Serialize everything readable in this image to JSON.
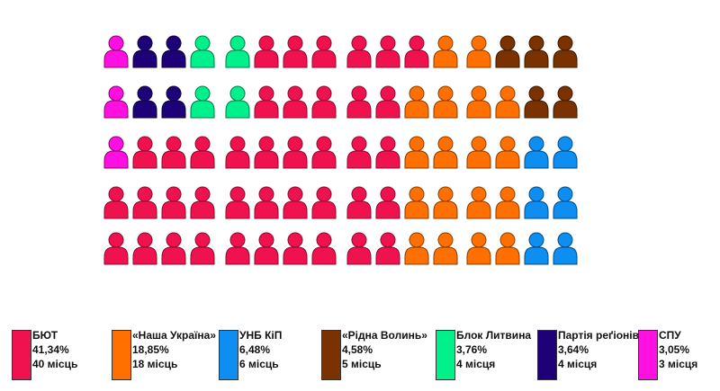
{
  "parties": [
    {
      "key": "byut",
      "name": "БЮТ",
      "percent": "41,34%",
      "seats_label": "40 місць",
      "seats": 40,
      "color": "#F0124F",
      "stroke": "#8a0a2d"
    },
    {
      "key": "nu",
      "name": "«Наша Україна»",
      "percent": "18,85%",
      "seats_label": "18 місць",
      "seats": 18,
      "color": "#FF7000",
      "stroke": "#8a3c00"
    },
    {
      "key": "unb",
      "name": "УНБ КіП",
      "percent": "6,48%",
      "seats_label": "6 місць",
      "seats": 6,
      "color": "#0D8EF0",
      "stroke": "#064a80"
    },
    {
      "key": "rv",
      "name": "«Рідна Волинь»",
      "percent": "4,58%",
      "seats_label": "5 місць",
      "seats": 5,
      "color": "#7A3300",
      "stroke": "#3a1800"
    },
    {
      "key": "lytvyn",
      "name": "Блок Литвина",
      "percent": "3,76%",
      "seats_label": "4 місця",
      "seats": 4,
      "color": "#00F08C",
      "stroke": "#007a46"
    },
    {
      "key": "pr",
      "name": "Партія реґіонів",
      "percent": "3,64%",
      "seats_label": "4 місця",
      "seats": 4,
      "color": "#1E0078",
      "stroke": "#0c0035"
    },
    {
      "key": "spu",
      "name": "СПУ",
      "percent": "3,05%",
      "seats_label": "3 місця",
      "seats": 3,
      "color": "#FF10E0",
      "stroke": "#850070"
    }
  ],
  "seat_rows": [
    [
      "spu",
      "pr",
      "pr",
      "lytvyn",
      "lytvyn",
      "byut",
      "byut",
      "byut",
      "byut",
      "byut",
      "byut",
      "nu",
      "nu",
      "rv",
      "rv",
      "rv"
    ],
    [
      "spu",
      "pr",
      "pr",
      "lytvyn",
      "lytvyn",
      "byut",
      "byut",
      "byut",
      "byut",
      "byut",
      "nu",
      "nu",
      "nu",
      "nu",
      "rv",
      "rv"
    ],
    [
      "spu",
      "byut",
      "byut",
      "byut",
      "byut",
      "byut",
      "byut",
      "byut",
      "byut",
      "byut",
      "nu",
      "nu",
      "nu",
      "nu",
      "unb",
      "unb"
    ],
    [
      "byut",
      "byut",
      "byut",
      "byut",
      "byut",
      "byut",
      "byut",
      "byut",
      "byut",
      "byut",
      "nu",
      "nu",
      "nu",
      "nu",
      "unb",
      "unb"
    ],
    [
      "byut",
      "byut",
      "byut",
      "byut",
      "byut",
      "byut",
      "byut",
      "byut",
      "byut",
      "byut",
      "nu",
      "nu",
      "nu",
      "nu",
      "unb",
      "unb"
    ]
  ]
}
